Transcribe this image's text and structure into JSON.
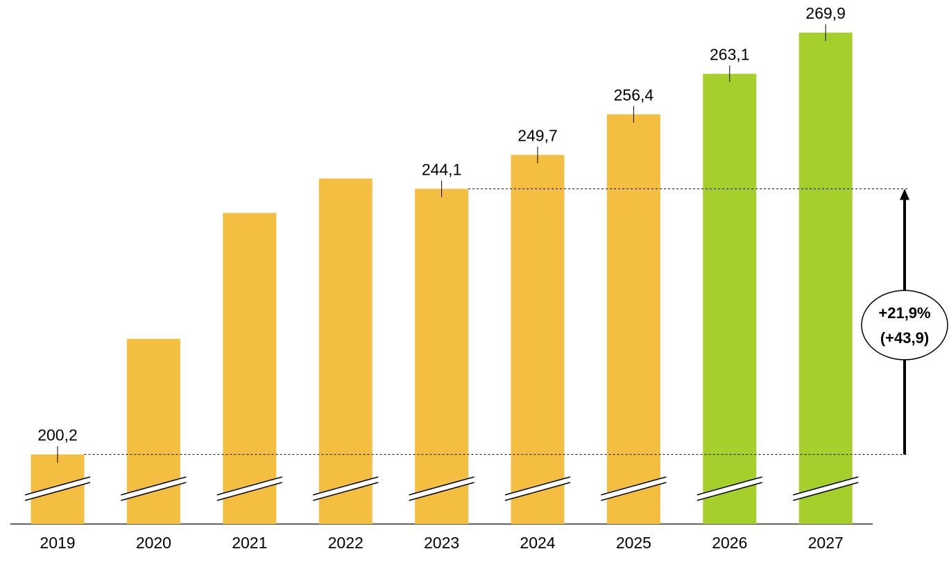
{
  "chart_data": {
    "type": "bar",
    "categories": [
      "2019",
      "2020",
      "2021",
      "2022",
      "2023",
      "2024",
      "2025",
      "2026",
      "2027"
    ],
    "values": [
      200.2,
      219.3,
      240.1,
      245.8,
      244.1,
      249.7,
      256.4,
      263.1,
      269.9
    ],
    "value_labels": [
      "200,2",
      null,
      null,
      null,
      "244,1",
      "249,7",
      "256,4",
      "263,1",
      "269,9"
    ],
    "colors": [
      "#f4be41",
      "#f4be41",
      "#f4be41",
      "#f4be41",
      "#f4be41",
      "#f4be41",
      "#f4be41",
      "#a5cf2a",
      "#a5cf2a"
    ],
    "ylim": [
      188.7,
      275.3
    ],
    "axis_break": true,
    "annotations": [
      "+21,9%",
      "(+43,9)"
    ]
  }
}
